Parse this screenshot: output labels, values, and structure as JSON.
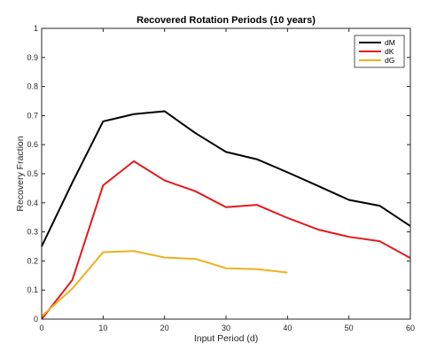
{
  "chart_data": {
    "type": "line",
    "title": "Recovered Rotation Periods (10 years)",
    "xlabel": "Input Period (d)",
    "ylabel": "Recovery Fraction",
    "xlim": [
      0,
      60
    ],
    "ylim": [
      0,
      1
    ],
    "xticks": [
      0,
      10,
      20,
      30,
      40,
      50,
      60
    ],
    "yticks": [
      0,
      0.1,
      0.2,
      0.3,
      0.4,
      0.5,
      0.6,
      0.7,
      0.8,
      0.9,
      1
    ],
    "xtick_labels": [
      "0",
      "10",
      "20",
      "30",
      "40",
      "50",
      "60"
    ],
    "ytick_labels": [
      "0",
      "0.1",
      "0.2",
      "0.3",
      "0.4",
      "0.5",
      "0.6",
      "0.7",
      "0.8",
      "0.9",
      "1"
    ],
    "grid": false,
    "legend_position": "top-right",
    "series": [
      {
        "name": "dM",
        "color": "#000000",
        "x": [
          0,
          5,
          10,
          15,
          20,
          25,
          30,
          35,
          40,
          45,
          50,
          55,
          60
        ],
        "y": [
          0.25,
          0.47,
          0.68,
          0.705,
          0.715,
          0.64,
          0.575,
          0.55,
          0.505,
          0.458,
          0.41,
          0.39,
          0.32
        ]
      },
      {
        "name": "dK",
        "color": "#e41a1c",
        "x": [
          0,
          5,
          10,
          15,
          20,
          25,
          30,
          35,
          40,
          45,
          50,
          55,
          60
        ],
        "y": [
          0.0,
          0.135,
          0.46,
          0.543,
          0.477,
          0.44,
          0.385,
          0.393,
          0.348,
          0.308,
          0.283,
          0.268,
          0.21
        ]
      },
      {
        "name": "dG",
        "color": "#edb120",
        "x": [
          0,
          5,
          10,
          15,
          20,
          25,
          30,
          35,
          40
        ],
        "y": [
          0.01,
          0.105,
          0.23,
          0.234,
          0.212,
          0.207,
          0.175,
          0.172,
          0.16
        ]
      }
    ]
  }
}
